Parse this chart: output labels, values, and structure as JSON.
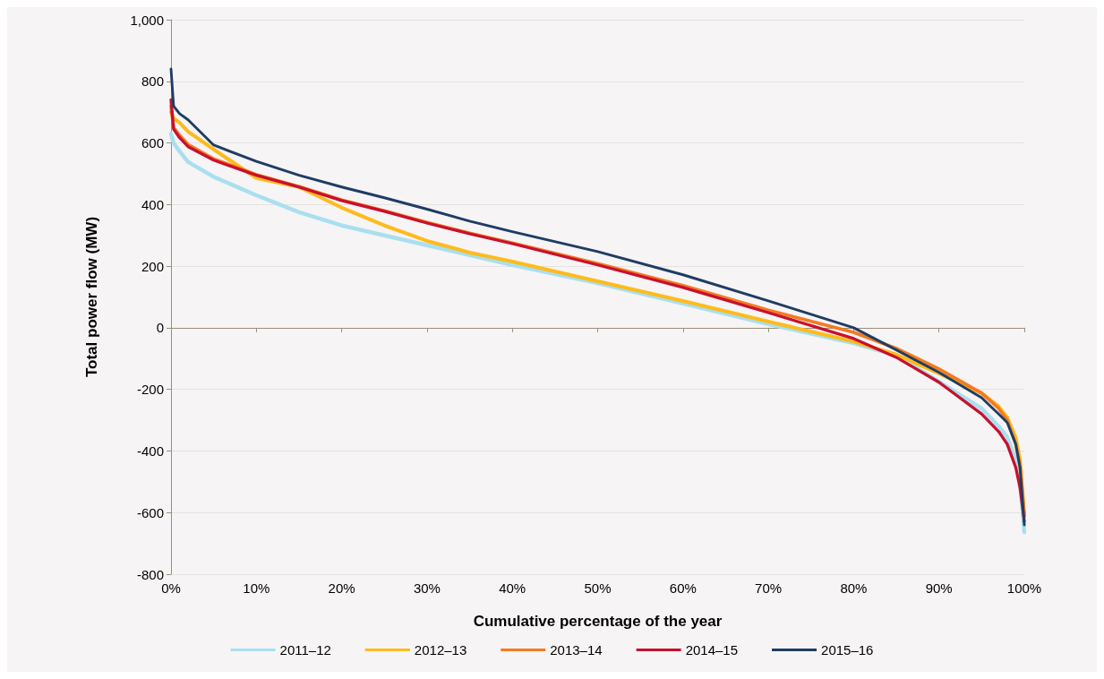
{
  "chart_data": {
    "type": "line",
    "xlabel": "Cumulative percentage of the year",
    "ylabel": "Total power flow (MW)",
    "x": [
      0,
      0.3,
      1,
      2,
      5,
      10,
      15,
      20,
      25,
      30,
      35,
      40,
      50,
      60,
      70,
      80,
      85,
      90,
      95,
      97,
      98,
      99,
      99.5,
      100
    ],
    "series": [
      {
        "name": "2011–12",
        "color": "#a9dff0",
        "values": [
          630,
          600,
          573,
          538,
          490,
          430,
          375,
          332,
          300,
          268,
          236,
          204,
          145,
          79,
          12,
          -50,
          -90,
          -175,
          -262,
          -320,
          -355,
          -430,
          -500,
          -663
        ]
      },
      {
        "name": "2012–13",
        "color": "#fdbb1e",
        "values": [
          700,
          680,
          666,
          637,
          579,
          486,
          457,
          390,
          332,
          282,
          244,
          215,
          151,
          87,
          20,
          -45,
          -87,
          -148,
          -212,
          -256,
          -291,
          -358,
          -430,
          -611
        ]
      },
      {
        "name": "2013–14",
        "color": "#f47a20",
        "values": [
          720,
          650,
          625,
          595,
          548,
          497,
          458,
          415,
          380,
          342,
          307,
          275,
          208,
          137,
          57,
          -15,
          -67,
          -134,
          -212,
          -262,
          -300,
          -378,
          -450,
          -611
        ]
      },
      {
        "name": "2014–15",
        "color": "#c8102e",
        "values": [
          740,
          645,
          617,
          588,
          544,
          495,
          457,
          413,
          378,
          340,
          305,
          273,
          204,
          131,
          49,
          -35,
          -96,
          -177,
          -280,
          -337,
          -378,
          -454,
          -520,
          -628
        ]
      },
      {
        "name": "2015–16",
        "color": "#1f3d64",
        "values": [
          840,
          720,
          695,
          675,
          593,
          540,
          495,
          457,
          422,
          385,
          346,
          312,
          247,
          172,
          87,
          0,
          -72,
          -145,
          -227,
          -280,
          -308,
          -378,
          -454,
          -640
        ]
      }
    ],
    "xlim": [
      0,
      100
    ],
    "xticks": [
      {
        "value": 0,
        "label": "0%"
      },
      {
        "value": 10,
        "label": "10%"
      },
      {
        "value": 20,
        "label": "20%"
      },
      {
        "value": 30,
        "label": "30%"
      },
      {
        "value": 40,
        "label": "40%"
      },
      {
        "value": 50,
        "label": "50%"
      },
      {
        "value": 60,
        "label": "60%"
      },
      {
        "value": 70,
        "label": "70%"
      },
      {
        "value": 80,
        "label": "80%"
      },
      {
        "value": 90,
        "label": "90%"
      },
      {
        "value": 100,
        "label": "100%"
      }
    ],
    "ylim": [
      -800,
      1000
    ],
    "yticks": [
      -800,
      -600,
      -400,
      -200,
      0,
      200,
      400,
      600,
      800,
      {
        "value": 1000,
        "label": "1,000"
      }
    ],
    "grid": "y",
    "legend": "bottom",
    "marker": "none",
    "line_style": "solid"
  }
}
